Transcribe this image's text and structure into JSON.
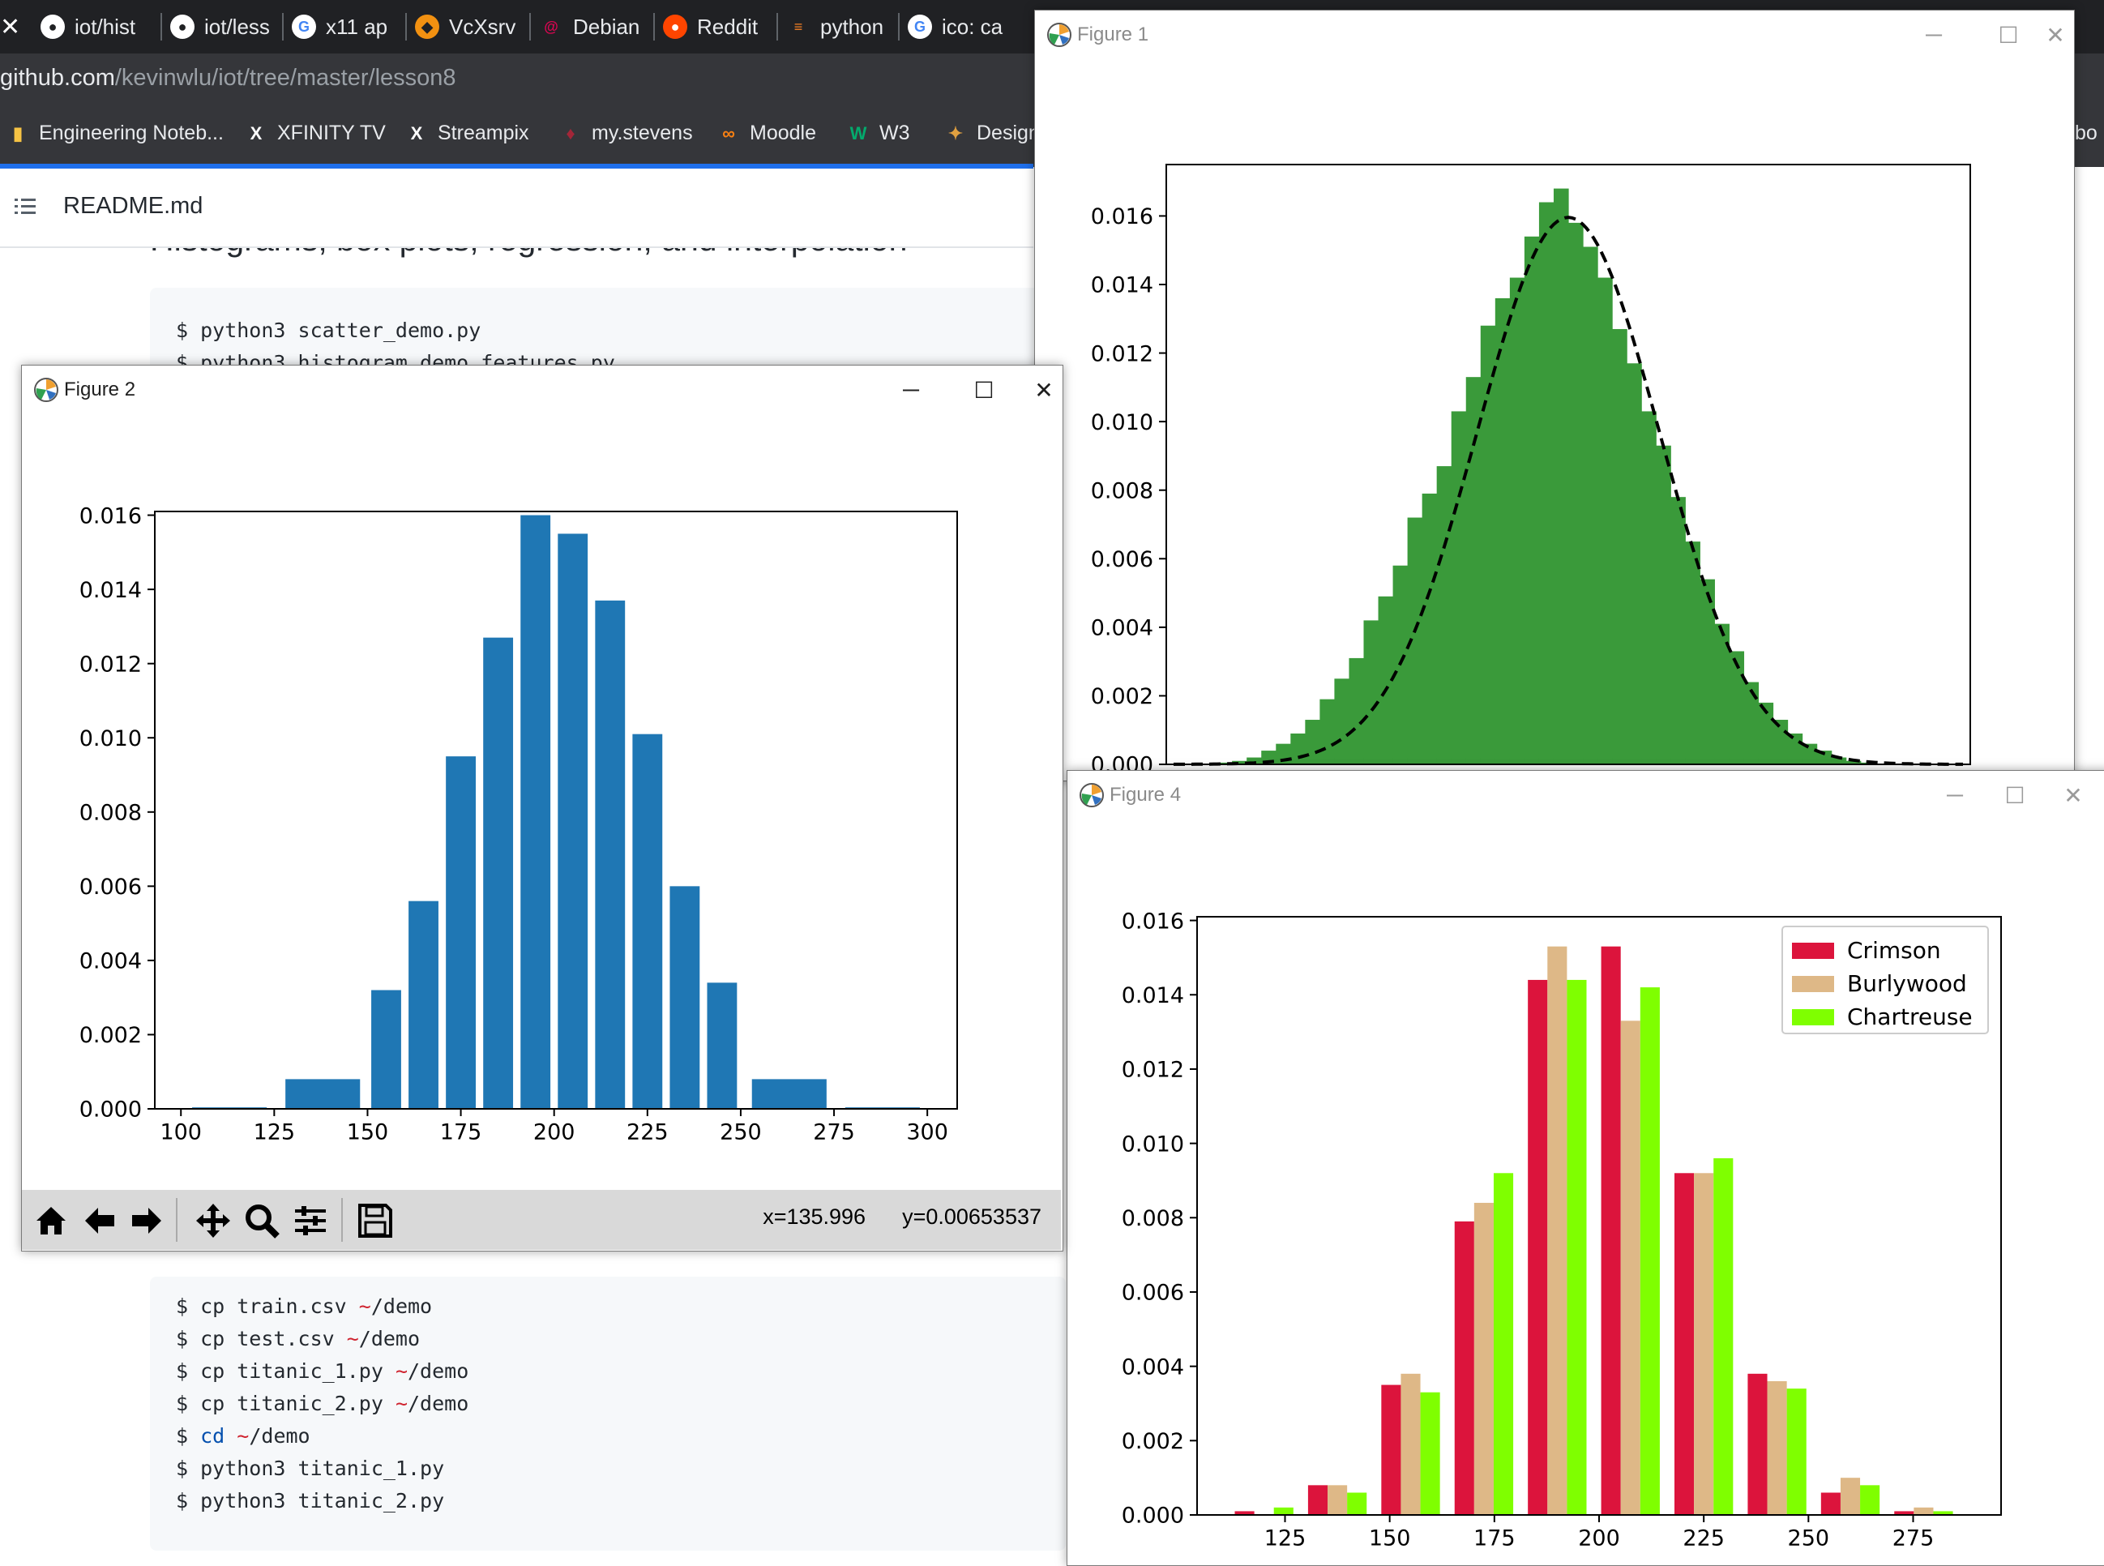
{
  "browser": {
    "tabs": [
      {
        "label": "iot/hist",
        "icon": "github-icon",
        "x": 50
      },
      {
        "label": "iot/less",
        "icon": "github-icon",
        "x": 212
      },
      {
        "label": "x11 ap",
        "icon": "google-icon",
        "x": 360
      },
      {
        "label": "VcXsrv",
        "icon": "diamond-icon",
        "x": 515
      },
      {
        "label": "Debian",
        "icon": "debian-icon",
        "x": 668
      },
      {
        "label": "Reddit",
        "icon": "reddit-icon",
        "x": 820
      },
      {
        "label": "python",
        "icon": "stackoverflow-icon",
        "x": 972
      },
      {
        "label": "ico: ca",
        "icon": "google-icon",
        "x": 1122
      }
    ],
    "url_host": "github.com",
    "url_path": "/kevinwlu/iot/tree/master/lesson8",
    "bookmarks": [
      {
        "label": "Engineering Noteb...",
        "icon": "folder-icon"
      },
      {
        "label": "XFINITY TV",
        "icon": "x-icon"
      },
      {
        "label": "Streampix",
        "icon": "x-icon"
      },
      {
        "label": "my.stevens",
        "icon": "stevens-icon"
      },
      {
        "label": "Moodle",
        "icon": "moodle-icon"
      },
      {
        "label": "W3",
        "icon": "w3-icon"
      },
      {
        "label": "Design",
        "icon": "design-icon"
      }
    ],
    "bookmark_edge_label": "bo"
  },
  "page": {
    "file_title": "README.md",
    "heading_partial": "Histograms, box plots, regression, and interpolation",
    "code_top": [
      "$ python3 scatter_demo.py",
      "$ python3 histogram_demo_features.py"
    ],
    "code_bottom": [
      {
        "cmd": "$ cp train.csv ",
        "arg": "~/demo"
      },
      {
        "cmd": "$ cp test.csv ",
        "arg": "~/demo"
      },
      {
        "cmd": "$ cp titanic_1.py ",
        "arg": "~/demo"
      },
      {
        "cmd": "$ cp titanic_2.py ",
        "arg": "~/demo"
      },
      {
        "cmd": "$ cd ",
        "arg": "~/demo"
      },
      {
        "cmd": "$ python3 titanic_1.py",
        "arg": ""
      },
      {
        "cmd": "$ python3 titanic_2.py",
        "arg": ""
      }
    ]
  },
  "figure1": {
    "title": "Figure 1",
    "chart_data": {
      "type": "bar",
      "ylim": [
        0,
        0.0175
      ],
      "xlim": [
        90,
        310
      ],
      "yticks": [
        "0.000",
        "0.002",
        "0.004",
        "0.006",
        "0.008",
        "0.010",
        "0.012",
        "0.014",
        "0.016"
      ],
      "bar_color": "#3a9a3a",
      "bin_edges_start": 100,
      "bin_width": 4,
      "values": [
        2e-05,
        5e-05,
        0.0001,
        0.0002,
        0.0004,
        0.0006,
        0.0009,
        0.0013,
        0.0019,
        0.0025,
        0.0031,
        0.0042,
        0.0049,
        0.0058,
        0.0072,
        0.0079,
        0.0087,
        0.0103,
        0.0113,
        0.0128,
        0.0136,
        0.0142,
        0.0154,
        0.0164,
        0.0168,
        0.0158,
        0.0151,
        0.0142,
        0.0127,
        0.0117,
        0.0103,
        0.0093,
        0.0078,
        0.0065,
        0.0054,
        0.0041,
        0.0033,
        0.0024,
        0.0018,
        0.0013,
        0.0009,
        0.0006,
        0.0004,
        0.0002,
        0.0001,
        5e-05,
        2e-05,
        1e-05,
        1e-05,
        1e-05
      ],
      "curve": {
        "type": "normal",
        "mean": 200,
        "std": 25,
        "style": "dashed",
        "color": "#000000"
      }
    }
  },
  "figure2": {
    "title": "Figure 2",
    "coords": "x=135.996      y=0.00653537",
    "chart_data": {
      "type": "bar",
      "xlim": [
        93,
        308
      ],
      "ylim": [
        0,
        0.0161
      ],
      "xticks": [
        "100",
        "125",
        "150",
        "175",
        "200",
        "225",
        "250",
        "275",
        "300"
      ],
      "yticks": [
        "0.000",
        "0.002",
        "0.004",
        "0.006",
        "0.008",
        "0.010",
        "0.012",
        "0.014",
        "0.016"
      ],
      "bar_color": "#1f77b4",
      "bars": [
        {
          "x0": 103,
          "x1": 123,
          "value": 4e-05
        },
        {
          "x0": 128,
          "x1": 148,
          "value": 0.0008
        },
        {
          "x0": 151,
          "x1": 159,
          "value": 0.0032
        },
        {
          "x0": 161,
          "x1": 169,
          "value": 0.0056
        },
        {
          "x0": 171,
          "x1": 179,
          "value": 0.0095
        },
        {
          "x0": 181,
          "x1": 189,
          "value": 0.0127
        },
        {
          "x0": 191,
          "x1": 199,
          "value": 0.016
        },
        {
          "x0": 201,
          "x1": 209,
          "value": 0.0155
        },
        {
          "x0": 211,
          "x1": 219,
          "value": 0.0137
        },
        {
          "x0": 221,
          "x1": 229,
          "value": 0.0101
        },
        {
          "x0": 231,
          "x1": 239,
          "value": 0.006
        },
        {
          "x0": 241,
          "x1": 249,
          "value": 0.0034
        },
        {
          "x0": 253,
          "x1": 273,
          "value": 0.0008
        },
        {
          "x0": 278,
          "x1": 298,
          "value": 4e-05
        }
      ]
    }
  },
  "figure4": {
    "title": "Figure 4",
    "chart_data": {
      "type": "bar",
      "xlim": [
        104,
        296
      ],
      "ylim": [
        0,
        0.0161
      ],
      "xticks": [
        "125",
        "150",
        "175",
        "200",
        "225",
        "250",
        "275"
      ],
      "yticks": [
        "0.000",
        "0.002",
        "0.004",
        "0.006",
        "0.008",
        "0.010",
        "0.012",
        "0.014",
        "0.016"
      ],
      "bin_centers": [
        120,
        137.5,
        155,
        172.5,
        190,
        207.5,
        225,
        242.5,
        260,
        277.5
      ],
      "group_width": 14,
      "legend_position": "upper right",
      "series": [
        {
          "name": "Crimson",
          "color": "#dc143c",
          "values": [
            0.0001,
            0.0008,
            0.0035,
            0.0079,
            0.0144,
            0.0153,
            0.0092,
            0.0038,
            0.0006,
            0.0001
          ]
        },
        {
          "name": "Burlywood",
          "color": "#deb887",
          "values": [
            0.0,
            0.0008,
            0.0038,
            0.0084,
            0.0153,
            0.0133,
            0.0092,
            0.0036,
            0.001,
            0.0002
          ]
        },
        {
          "name": "Chartreuse",
          "color": "#7fff00",
          "values": [
            0.0002,
            0.0006,
            0.0033,
            0.0092,
            0.0144,
            0.0142,
            0.0096,
            0.0034,
            0.0008,
            0.0001
          ]
        }
      ]
    }
  }
}
